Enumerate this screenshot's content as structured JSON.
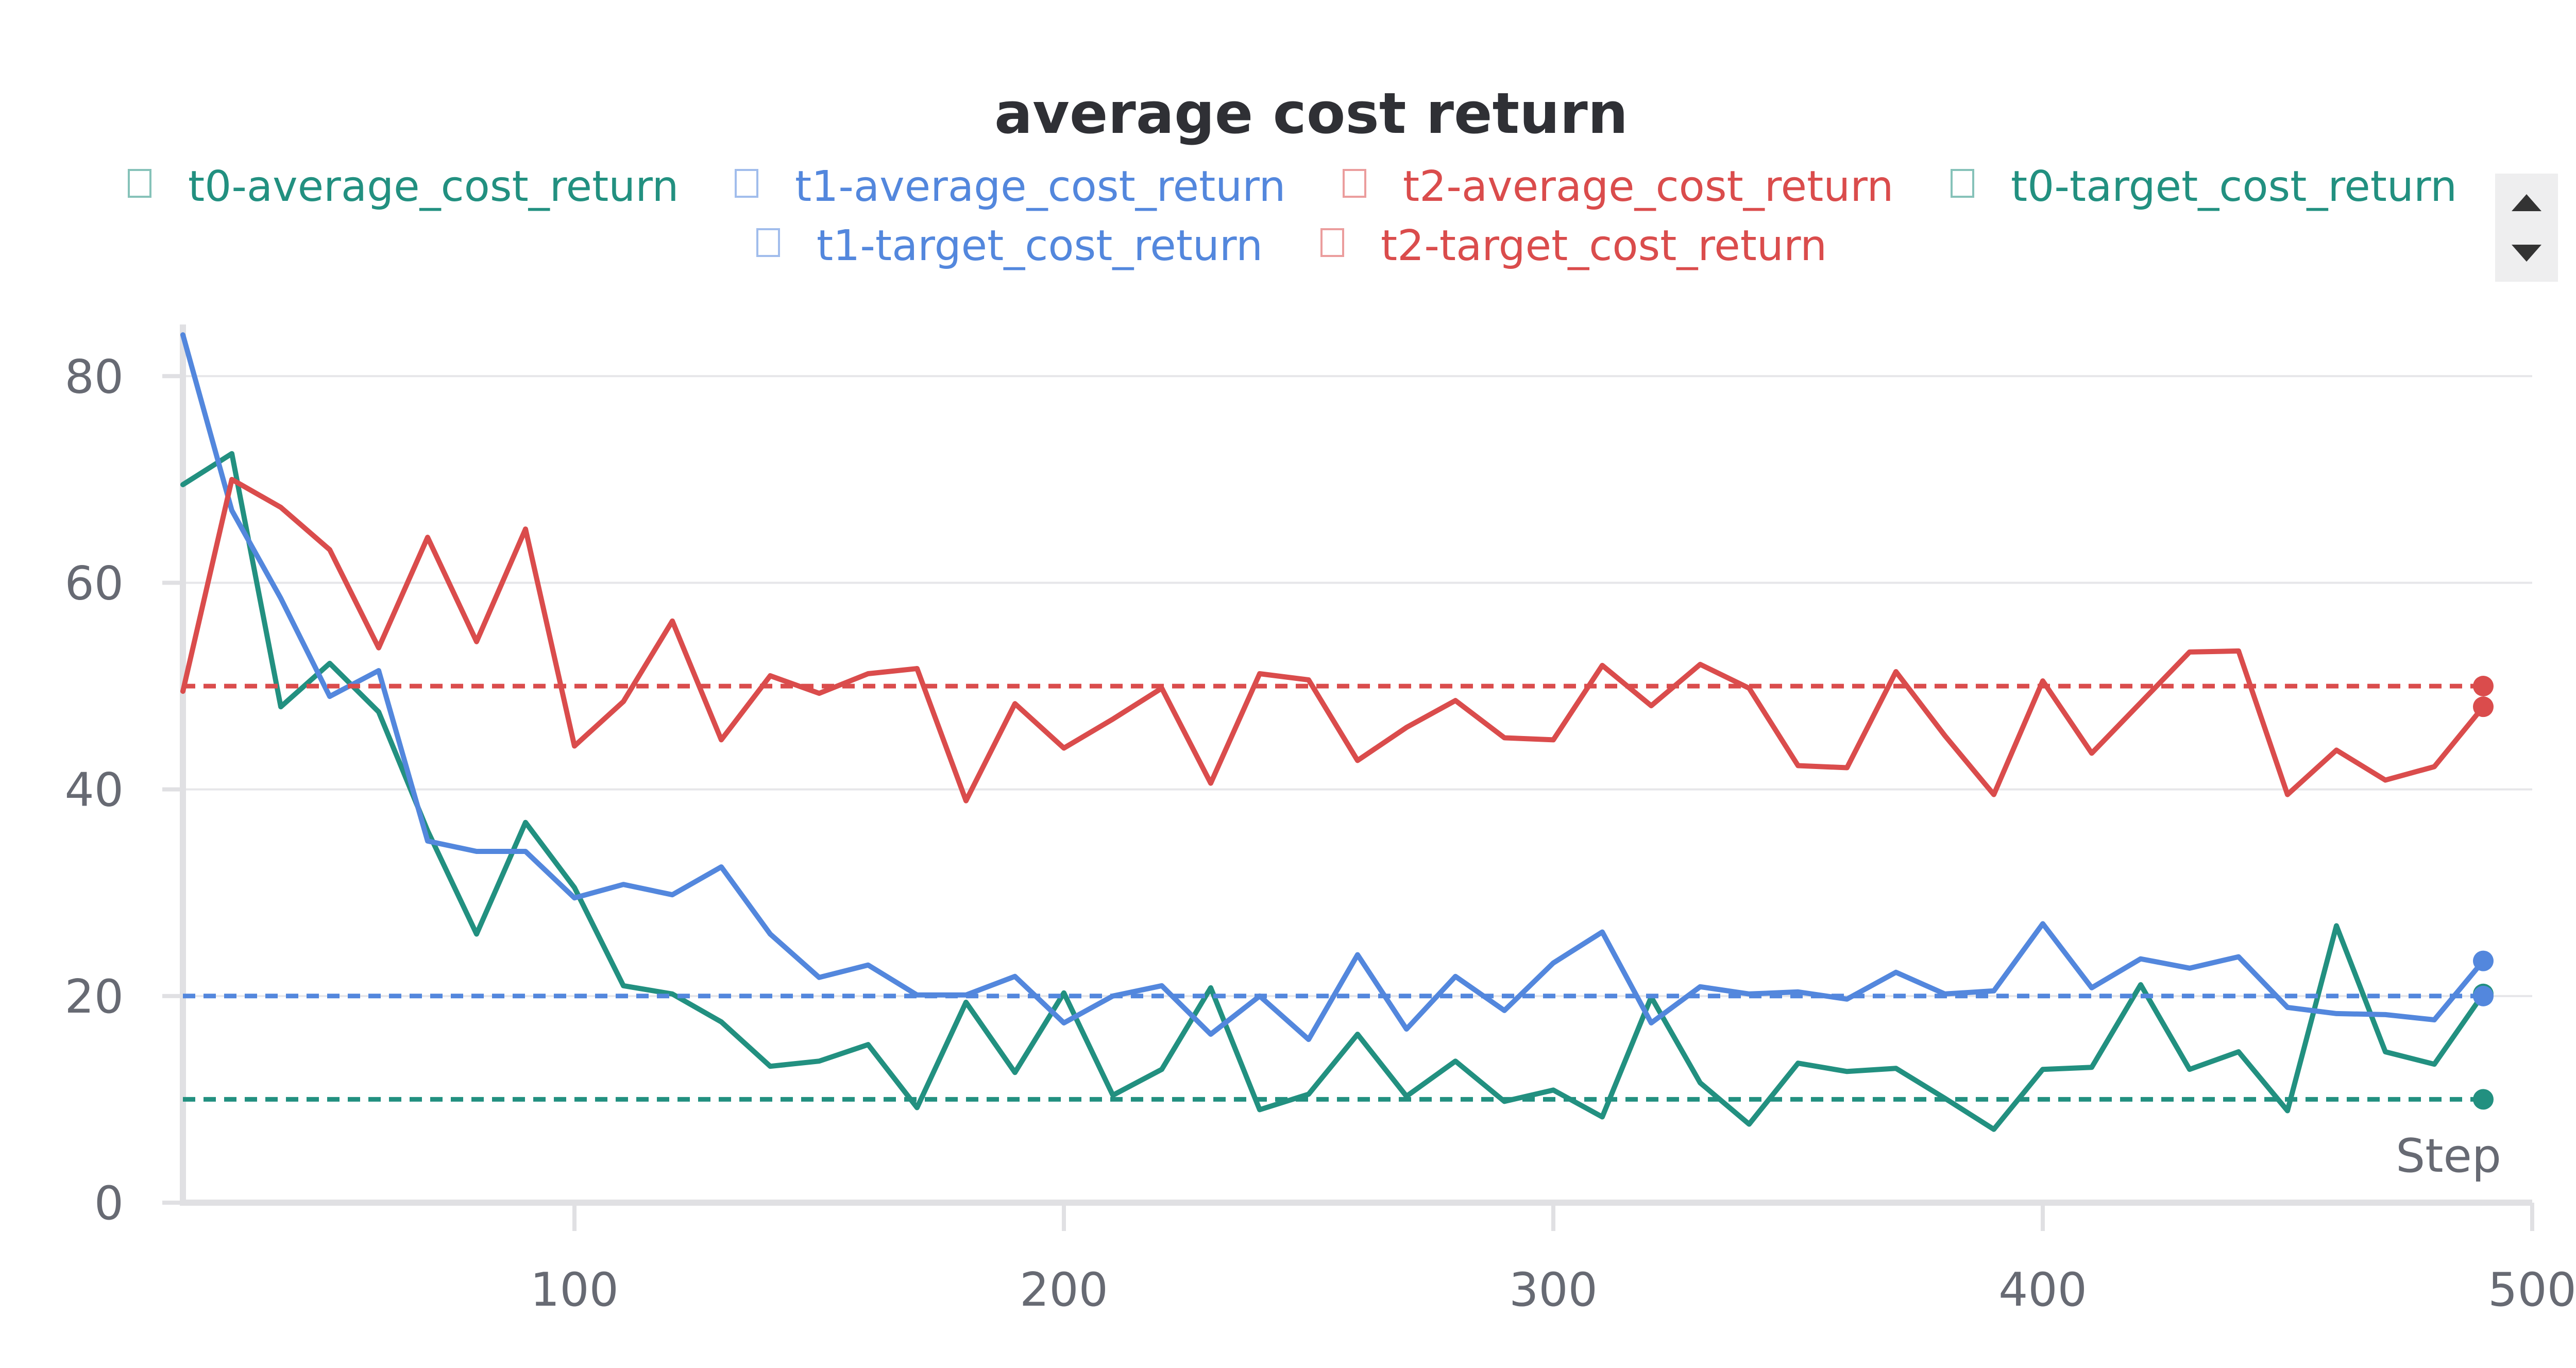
{
  "chart_data": {
    "type": "line",
    "title": "average cost return",
    "xlabel": "Step",
    "ylabel": "",
    "xlim": [
      20,
      500
    ],
    "ylim": [
      0,
      85
    ],
    "x_ticks": [
      100,
      200,
      300,
      400,
      "500"
    ],
    "y_ticks": [
      0,
      20,
      40,
      60,
      80
    ],
    "grid": "horizontal",
    "legend_position": "top",
    "series": [
      {
        "name": "t0-average_cost_return",
        "color": "#229080",
        "style": "solid",
        "x": [
          20,
          30,
          40,
          50,
          60,
          70,
          80,
          90,
          100,
          110,
          120,
          130,
          140,
          150,
          160,
          170,
          180,
          190,
          200,
          210,
          220,
          230,
          240,
          250,
          260,
          270,
          280,
          290,
          300,
          310,
          320,
          330,
          340,
          350,
          360,
          370,
          380,
          390,
          400,
          410,
          420,
          430,
          440,
          450,
          460,
          470,
          480,
          490
        ],
        "values": [
          69.5,
          72.5,
          48,
          52.2,
          47.5,
          36,
          26,
          36.8,
          30.5,
          21,
          20.2,
          17.5,
          13.2,
          13.7,
          15.3,
          9.2,
          19.4,
          12.6,
          20.3,
          10.4,
          12.9,
          20.8,
          9,
          10.5,
          16.3,
          10.3,
          13.7,
          9.8,
          10.9,
          8.3,
          19.9,
          11.6,
          7.6,
          13.5,
          12.7,
          13,
          10.1,
          7.1,
          12.9,
          13.1,
          21.1,
          12.9,
          14.6,
          8.9,
          26.8,
          14.6,
          13.4,
          20.2
        ]
      },
      {
        "name": "t1-average_cost_return",
        "color": "#5387dd",
        "style": "solid",
        "x": [
          20,
          30,
          40,
          50,
          60,
          70,
          80,
          90,
          100,
          110,
          120,
          130,
          140,
          150,
          160,
          170,
          180,
          190,
          200,
          210,
          220,
          230,
          240,
          250,
          260,
          270,
          280,
          290,
          300,
          310,
          320,
          330,
          340,
          350,
          360,
          370,
          380,
          390,
          400,
          410,
          420,
          430,
          440,
          450,
          460,
          470,
          480,
          490
        ],
        "values": [
          84,
          67,
          58.5,
          49,
          51.5,
          35,
          34,
          34,
          29.5,
          30.8,
          29.8,
          32.5,
          26,
          21.8,
          23,
          20.1,
          20.1,
          21.9,
          17.4,
          20,
          21,
          16.3,
          20,
          15.8,
          24,
          16.8,
          21.9,
          18.6,
          23.2,
          26.2,
          17.4,
          20.9,
          20.2,
          20.4,
          19.7,
          22.3,
          20.2,
          20.5,
          27,
          20.8,
          23.6,
          22.7,
          23.8,
          18.9,
          18.3,
          18.2,
          17.7,
          23.4
        ]
      },
      {
        "name": "t2-average_cost_return",
        "color": "#da4c4c",
        "style": "solid",
        "x": [
          20,
          30,
          40,
          50,
          60,
          70,
          80,
          90,
          100,
          110,
          120,
          130,
          140,
          150,
          160,
          170,
          180,
          190,
          200,
          210,
          220,
          230,
          240,
          250,
          260,
          270,
          280,
          290,
          300,
          310,
          320,
          330,
          340,
          350,
          360,
          370,
          380,
          390,
          400,
          410,
          420,
          430,
          440,
          450,
          460,
          470,
          480,
          490
        ],
        "values": [
          49.5,
          70,
          67.3,
          63.2,
          53.7,
          64.4,
          54.3,
          65.2,
          44.2,
          48.5,
          56.3,
          44.8,
          51,
          49.3,
          51.2,
          51.7,
          38.9,
          48.3,
          44,
          46.8,
          49.8,
          40.6,
          51.2,
          50.6,
          42.8,
          46,
          48.6,
          45,
          44.8,
          52,
          48.1,
          52.1,
          49.8,
          42.3,
          42.1,
          51.4,
          45.2,
          39.5,
          50.5,
          43.5,
          48.4,
          53.3,
          53.4,
          39.5,
          43.8,
          40.9,
          42.2,
          48
        ]
      },
      {
        "name": "t0-target_cost_return",
        "color": "#229080",
        "style": "dashed",
        "x": [
          20,
          490
        ],
        "values": [
          10,
          10
        ]
      },
      {
        "name": "t1-target_cost_return",
        "color": "#5387dd",
        "style": "dashed",
        "x": [
          20,
          490
        ],
        "values": [
          20,
          20
        ]
      },
      {
        "name": "t2-target_cost_return",
        "color": "#da4c4c",
        "style": "dashed",
        "x": [
          20,
          490
        ],
        "values": [
          50,
          50
        ]
      }
    ]
  }
}
